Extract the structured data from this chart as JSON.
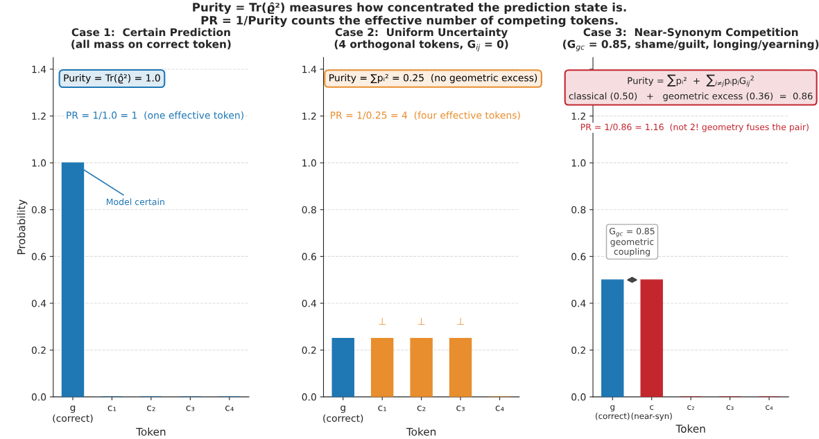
{
  "chart_data": [
    {
      "type": "bar",
      "title": "Purity = Tr(ϱ̂²) measures how concentrated the prediction state is.\nPR = 1/Purity counts the effective number of competing tokens.",
      "subtitle": "Case 1:  Certain Prediction\n(all mass on correct token)",
      "xlabel": "Token",
      "ylabel": "Probability",
      "categories": [
        "g\n(correct)",
        "c₁",
        "c₂",
        "c₃",
        "c₄"
      ],
      "values": [
        1.0,
        0,
        0,
        0,
        0
      ],
      "colors": [
        "#1f77b4",
        "#1f77b4",
        "#1f77b4",
        "#1f77b4",
        "#1f77b4"
      ],
      "ylim": [
        0,
        1.45
      ],
      "yticks": [
        {
          "value": 0,
          "label": "0.0"
        },
        0.2,
        0.4,
        0.6,
        0.8,
        {
          "value": 1,
          "label": "1.0"
        },
        1.2,
        1.4
      ],
      "grid": "y",
      "annotations": [
        "Purity = Tr(ϱ̂²) = 1.0",
        "PR = 1/1.0 = 1  (one effective token)",
        {
          "text": "Model certain",
          "x": "g\n(correct)",
          "y": 1.0
        }
      ]
    },
    {
      "type": "bar",
      "subtitle": "Case 2:  Uniform Uncertainty\n(4 orthogonal tokens, G$_{ij}$ = 0)",
      "xlabel": "Token",
      "categories": [
        "g\n(correct)",
        "c₁",
        "c₂",
        "c₃",
        "c₄"
      ],
      "values": [
        0.25,
        0.25,
        0.25,
        0.25,
        0
      ],
      "colors": [
        "#1f77b4",
        "#e88e2e",
        "#e88e2e",
        "#e88e2e",
        "#e88e2e"
      ],
      "ylim": [
        0,
        1.45
      ],
      "yticks": [
        {
          "value": 0,
          "label": "0.0"
        },
        0.2,
        0.4,
        0.6,
        0.8,
        {
          "value": 1,
          "label": "1.0"
        },
        1.2,
        1.4
      ],
      "grid": "y",
      "annotations": [
        "Purity = ∑pᵢ² = 0.25  (no geometric excess)",
        "PR = 1/0.25 = 4  (four effective tokens)",
        {
          "text": "⊥",
          "x": "c₁",
          "y": 0.25
        },
        {
          "text": "⊥",
          "x": "c₂",
          "y": 0.25
        },
        {
          "text": "⊥",
          "x": "c₃",
          "y": 0.25
        }
      ]
    },
    {
      "type": "bar",
      "subtitle": "Case 3:  Near-Synonym Competition\n(G$_{gc}$ = 0.85, shame/guilt, longing/yearning)",
      "xlabel": "Token",
      "categories": [
        "g\n(correct)",
        "c\n(near-syn)",
        "c₂",
        "c₃",
        "c₄"
      ],
      "values": [
        0.5,
        0.5,
        0,
        0,
        0
      ],
      "colors": [
        "#1f77b4",
        "#c4262e",
        "#c4262e",
        "#c4262e",
        "#c4262e"
      ],
      "ylim": [
        0,
        1.45
      ],
      "yticks": [
        {
          "value": 0,
          "label": "0.0"
        },
        0.2,
        0.4,
        0.6,
        0.8,
        {
          "value": 1,
          "label": "1.0"
        },
        1.2,
        {
          "value": 1.4,
          "label": null
        }
      ],
      "grid": "y",
      "annotations": [
        "Purity = ∑pᵢ²  +  ∑$_{i≠j}$pᵢpⱼG$_{ij}$$^{2}$\nclassical (0.50)   +   geometric excess (0.36)  =  0.86",
        "PR = 1/0.86 = 1.16  (not 2! geometry fuses the pair)",
        "G$_{gc}$ = 0.85\ngeometric\ncoupling"
      ]
    }
  ]
}
